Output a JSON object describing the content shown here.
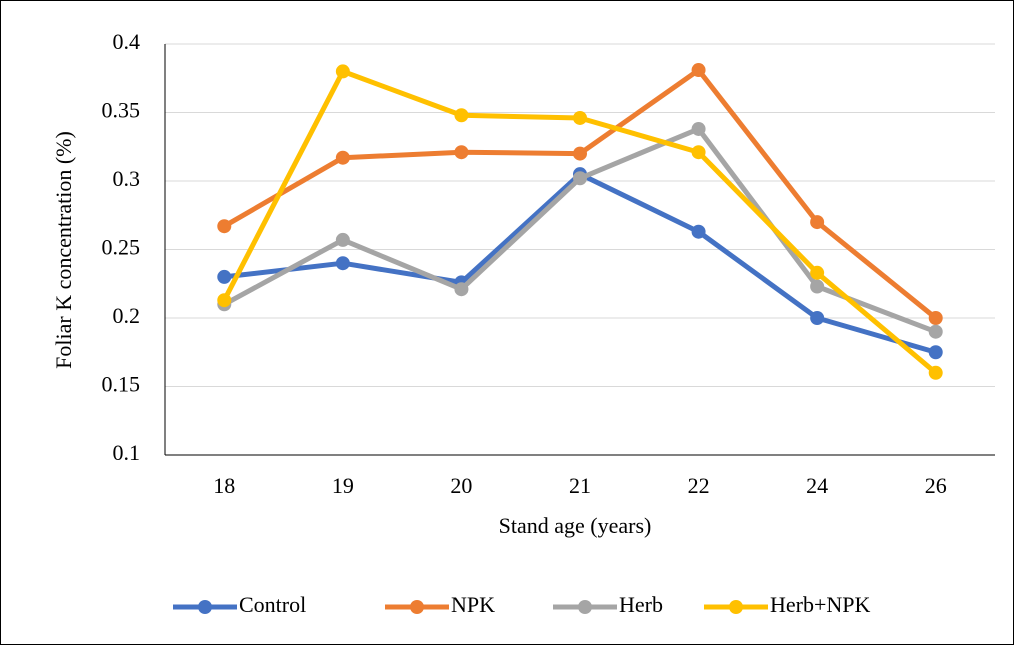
{
  "chart_data": {
    "type": "line",
    "x_label": "Stand age (years)",
    "y_label": "Foliar K concentration (%)",
    "categories": [
      "18",
      "19",
      "20",
      "21",
      "22",
      "24",
      "26"
    ],
    "series": [
      {
        "name": "Control",
        "color": "#4472c4",
        "values": [
          0.23,
          0.24,
          0.226,
          0.305,
          0.263,
          0.2,
          0.175
        ]
      },
      {
        "name": "NPK",
        "color": "#ed7d31",
        "values": [
          0.267,
          0.317,
          0.321,
          0.32,
          0.381,
          0.27,
          0.2
        ]
      },
      {
        "name": "Herb",
        "color": "#a5a5a5",
        "values": [
          0.21,
          0.257,
          0.221,
          0.302,
          0.338,
          0.223,
          0.19
        ]
      },
      {
        "name": "Herb+NPK",
        "color": "#ffc000",
        "values": [
          0.213,
          0.38,
          0.348,
          0.346,
          0.321,
          0.233,
          0.16
        ]
      }
    ],
    "ylim": [
      0.1,
      0.4
    ],
    "yticks": [
      0.1,
      0.15,
      0.2,
      0.25,
      0.3,
      0.35,
      0.4
    ],
    "grid": true,
    "legend": "bottom"
  }
}
